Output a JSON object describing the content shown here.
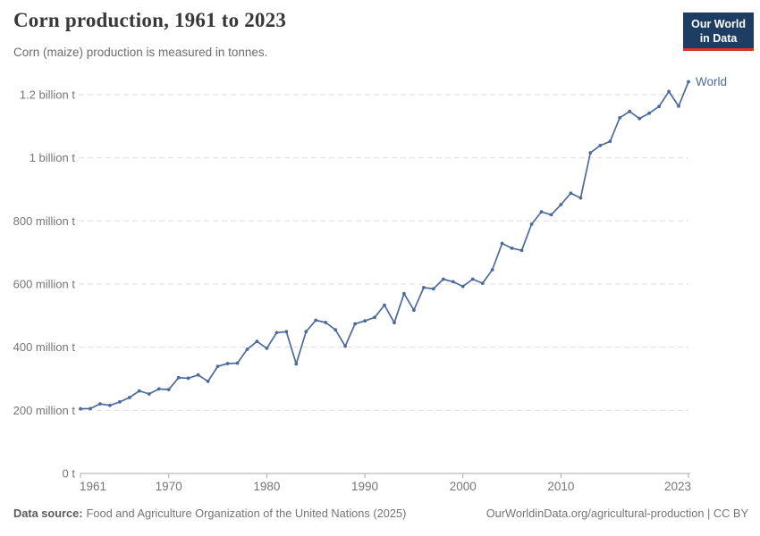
{
  "header": {
    "title": "Corn production, 1961 to 2023",
    "subtitle": "Corn (maize) production is measured in tonnes.",
    "logo": {
      "line1": "Our World",
      "line2": "in Data"
    }
  },
  "chart_data": {
    "type": "line",
    "title": "Corn production, 1961 to 2023",
    "xlabel": "",
    "ylabel": "",
    "unit": "million tonnes",
    "grid": "horizontal dashed",
    "legend_position": "end-of-line",
    "xlim": [
      1961,
      2023
    ],
    "ylim": [
      0,
      1272
    ],
    "x_ticks": [
      {
        "value": 1961,
        "label": "1961"
      },
      {
        "value": 1970,
        "label": "1970"
      },
      {
        "value": 1980,
        "label": "1980"
      },
      {
        "value": 1990,
        "label": "1990"
      },
      {
        "value": 2000,
        "label": "2000"
      },
      {
        "value": 2010,
        "label": "2010"
      },
      {
        "value": 2023,
        "label": "2023"
      }
    ],
    "y_ticks": [
      {
        "value": 0,
        "label": "0 t"
      },
      {
        "value": 200,
        "label": "200 million t"
      },
      {
        "value": 400,
        "label": "400 million t"
      },
      {
        "value": 600,
        "label": "600 million t"
      },
      {
        "value": 800,
        "label": "800 million t"
      },
      {
        "value": 1000,
        "label": "1 billion t"
      },
      {
        "value": 1200,
        "label": "1.2 billion t"
      }
    ],
    "series": [
      {
        "name": "World",
        "color": "#4C6A9C",
        "years": [
          1961,
          1962,
          1963,
          1964,
          1965,
          1966,
          1967,
          1968,
          1969,
          1970,
          1971,
          1972,
          1973,
          1974,
          1975,
          1976,
          1977,
          1978,
          1979,
          1980,
          1981,
          1982,
          1983,
          1984,
          1985,
          1986,
          1987,
          1988,
          1989,
          1990,
          1991,
          1992,
          1993,
          1994,
          1995,
          1996,
          1997,
          1998,
          1999,
          2000,
          2001,
          2002,
          2003,
          2004,
          2005,
          2006,
          2007,
          2008,
          2009,
          2010,
          2011,
          2012,
          2013,
          2014,
          2015,
          2016,
          2017,
          2018,
          2019,
          2020,
          2021,
          2022,
          2023
        ],
        "values": [
          205.0,
          205.5,
          220.5,
          215.6,
          226.6,
          240.6,
          261.5,
          251.9,
          267.8,
          265.8,
          303.3,
          301.7,
          312.3,
          291.8,
          339.3,
          348.0,
          349.5,
          393.3,
          418.3,
          396.6,
          446.0,
          449.2,
          347.1,
          449.3,
          485.5,
          478.2,
          455.1,
          403.3,
          474.0,
          483.4,
          494.5,
          533.1,
          477.4,
          569.6,
          517.3,
          589.0,
          584.9,
          615.5,
          607.4,
          592.5,
          615.5,
          602.6,
          645.2,
          728.9,
          713.6,
          706.8,
          789.5,
          829.1,
          819.7,
          851.9,
          887.7,
          872.8,
          1016.0,
          1039.0,
          1052.1,
          1127.0,
          1147.0,
          1124.2,
          1141.4,
          1162.6,
          1210.2,
          1163.5,
          1241.0
        ]
      }
    ]
  },
  "footer": {
    "source_label": "Data source:",
    "source_text": "Food and Agriculture Organization of the United Nations (2025)",
    "url_text": "OurWorldinData.org/agricultural-production | CC BY"
  },
  "colors": {
    "series_blue": "#4C6A9C",
    "gridline": "#dedede",
    "axis": "#a8a8a8",
    "tick_label": "#757575",
    "title_text": "#383838",
    "subtitle_text": "#6d6d6d",
    "logo_background": "#1d3d63",
    "logo_bar": "#d8352a",
    "background": "#ffffff"
  }
}
